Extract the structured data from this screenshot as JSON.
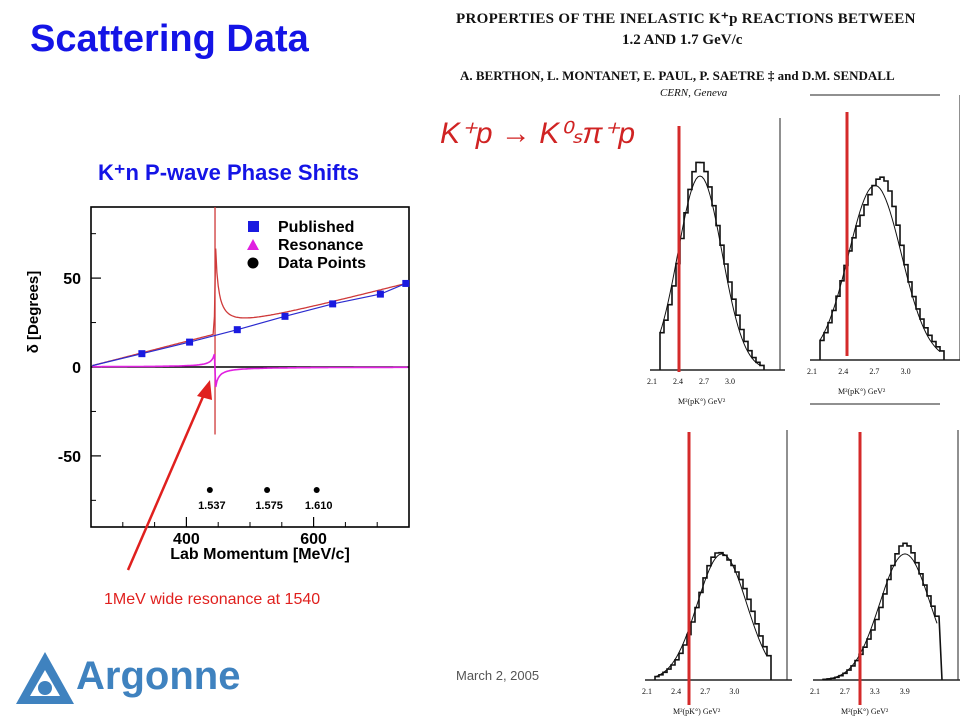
{
  "slide_title": "Scattering Data",
  "annotation": "1MeV wide resonance at 1540",
  "date": "March 2, 2005",
  "logo_text": "Argonne",
  "paper": {
    "title_line1": "PROPERTIES OF THE INELASTIC K⁺p REACTIONS BETWEEN",
    "title_line2": "1.2 AND 1.7 GeV/c",
    "authors": "A. BERTHON, L. MONTANET, E. PAUL, P. SAETRE ‡ and D.M. SENDALL",
    "institution": "CERN, Geneva",
    "reaction": "K⁺p → K⁰ₛπ⁺p"
  },
  "colors": {
    "title_blue": "#1414e6",
    "published": "#1a1ae0",
    "resonance_curve": "#cf3a3a",
    "magenta": "#e020e0",
    "marker_red": "#d42a2a",
    "logo_blue": "#3f82bf"
  },
  "chart_data": [
    {
      "type": "line",
      "title": "K⁺n P-wave Phase Shifts",
      "xlabel": "Lab Momentum [MeV/c]",
      "ylabel": "δ [Degrees]",
      "xlim": [
        250,
        750
      ],
      "ylim": [
        -90,
        90
      ],
      "x_ticks": [
        400,
        600
      ],
      "y_ticks": [
        50,
        0,
        -50
      ],
      "legend": [
        "Published",
        "Resonance",
        "Data Points"
      ],
      "legend_position": "top-right",
      "series": [
        {
          "name": "Published",
          "marker": "square",
          "x": [
            330,
            405,
            480,
            555,
            630,
            705,
            745
          ],
          "y": [
            7.5,
            14,
            21,
            28.5,
            35.5,
            41,
            47
          ]
        }
      ],
      "data_point_labels": [
        {
          "x": 440,
          "label": "1.537"
        },
        {
          "x": 530,
          "label": "1.575"
        },
        {
          "x": 608,
          "label": "1.610"
        }
      ]
    },
    {
      "type": "bar",
      "xlabel": "M²(pK°)   GeV²",
      "x_ticks": [
        "2.1",
        "2.4",
        "2.7",
        "3.0"
      ]
    },
    {
      "type": "bar",
      "xlabel": "M²(pK°)   GeV²",
      "x_ticks": [
        "2.1",
        "2.4",
        "2.7",
        "3.0"
      ]
    },
    {
      "type": "bar",
      "xlabel": "M²(pK°)   GeV²",
      "x_ticks": [
        "2.1",
        "2.4",
        "2.7",
        "3.0"
      ]
    },
    {
      "type": "bar",
      "xlabel": "M²(pK°)   GeV²",
      "x_ticks": [
        "2.1",
        "2.7",
        "3.3",
        "3.9"
      ]
    }
  ]
}
